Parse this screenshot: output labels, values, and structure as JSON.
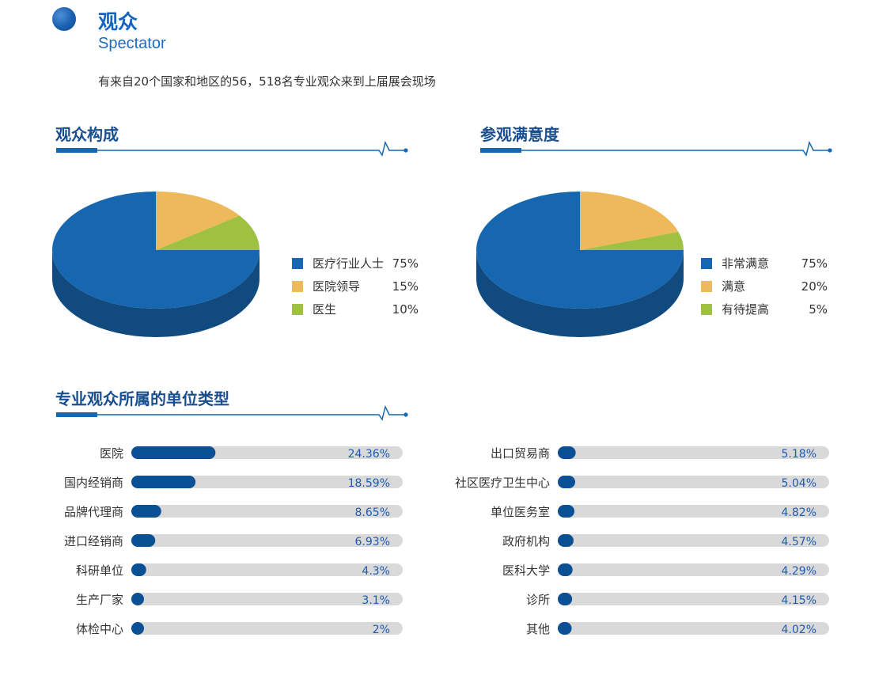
{
  "header": {
    "title": "观众",
    "subtitle": "Spectator",
    "intro": "有来自20个国家和地区的56，518名专业观众来到上届展会现场"
  },
  "colors": {
    "primary": "#1767b0",
    "primary_dark": "#0b4f94",
    "yellow": "#eeb95a",
    "green": "#9ec141",
    "track": "#d9d9d9",
    "title": "#1a4f8f"
  },
  "sections": {
    "composition_title": "观众构成",
    "satisfaction_title": "参观满意度",
    "unit_type_title": "专业观众所属的单位类型"
  },
  "chart_data": [
    {
      "type": "pie",
      "title": "观众构成",
      "labels": [
        "医疗行业人士",
        "医院领导",
        "医生"
      ],
      "values": [
        75,
        15,
        10
      ],
      "value_labels": [
        "75%",
        "15%",
        "10%"
      ],
      "colors": [
        "#1767b0",
        "#eeb95a",
        "#9ec141"
      ],
      "legend_position": "right"
    },
    {
      "type": "pie",
      "title": "参观满意度",
      "labels": [
        "非常满意",
        "满意",
        "有待提高"
      ],
      "values": [
        75,
        20,
        5
      ],
      "value_labels": [
        "75%",
        "20%",
        "5%"
      ],
      "colors": [
        "#1767b0",
        "#eeb95a",
        "#9ec141"
      ],
      "legend_position": "right"
    },
    {
      "type": "bar",
      "title": "专业观众所属的单位类型",
      "orientation": "horizontal",
      "categories": [
        "医院",
        "国内经销商",
        "品牌代理商",
        "进口经销商",
        "科研单位",
        "生产厂家",
        "体检中心"
      ],
      "values": [
        24.36,
        18.59,
        8.65,
        6.93,
        4.3,
        3.1,
        2
      ],
      "value_labels": [
        "24.36%",
        "18.59%",
        "8.65%",
        "6.93%",
        "4.3%",
        "3.1%",
        "2%"
      ]
    },
    {
      "type": "bar",
      "title": "",
      "orientation": "horizontal",
      "categories": [
        "出口贸易商",
        "社区医疗卫生中心",
        "单位医务室",
        "政府机构",
        "医科大学",
        "诊所",
        "其他"
      ],
      "values": [
        5.18,
        5.04,
        4.82,
        4.57,
        4.29,
        4.15,
        4.02
      ],
      "value_labels": [
        "5.18%",
        "5.04%",
        "4.82%",
        "4.57%",
        "4.29%",
        "4.15%",
        "4.02%"
      ]
    }
  ]
}
